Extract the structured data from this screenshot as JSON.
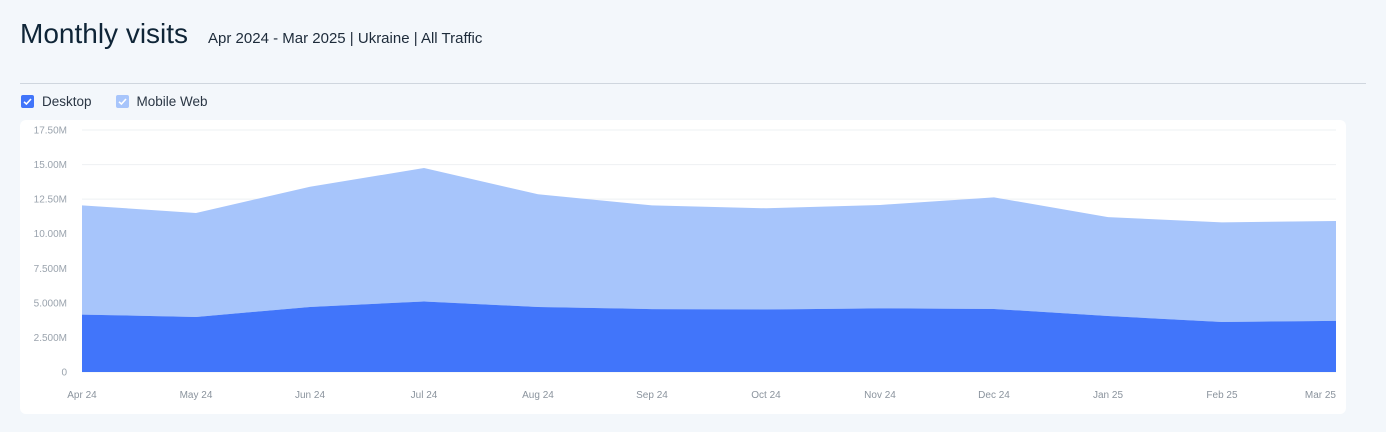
{
  "header": {
    "title": "Monthly visits",
    "subtitle": "Apr 2024 - Mar 2025 | Ukraine | All Traffic"
  },
  "legend": [
    {
      "label": "Desktop",
      "color": "#4175fa",
      "checked": true
    },
    {
      "label": "Mobile Web",
      "color": "#a7c5fb",
      "checked": true
    }
  ],
  "chart_data": {
    "type": "area",
    "stacked": true,
    "categories": [
      "Apr 24",
      "May 24",
      "Jun 24",
      "Jul 24",
      "Aug 24",
      "Sep 24",
      "Oct 24",
      "Nov 24",
      "Dec 24",
      "Jan 25",
      "Feb 25",
      "Mar 25"
    ],
    "series": [
      {
        "name": "Desktop",
        "color": "#4175fa",
        "values": [
          4.15,
          3.98,
          4.7,
          5.1,
          4.7,
          4.55,
          4.52,
          4.6,
          4.56,
          4.05,
          3.62,
          3.7
        ]
      },
      {
        "name": "Mobile Web",
        "color": "#a7c5fb",
        "values": [
          7.9,
          7.52,
          8.7,
          9.65,
          8.15,
          7.5,
          7.32,
          7.48,
          8.07,
          7.15,
          7.2,
          7.22
        ]
      }
    ],
    "unit": "M",
    "ylim": [
      0,
      17.5
    ],
    "yticks": [
      "0",
      "2.500M",
      "5.000M",
      "7.500M",
      "10.00M",
      "12.50M",
      "15.00M",
      "17.50M"
    ],
    "grid": true,
    "legend_position": "top-left"
  }
}
